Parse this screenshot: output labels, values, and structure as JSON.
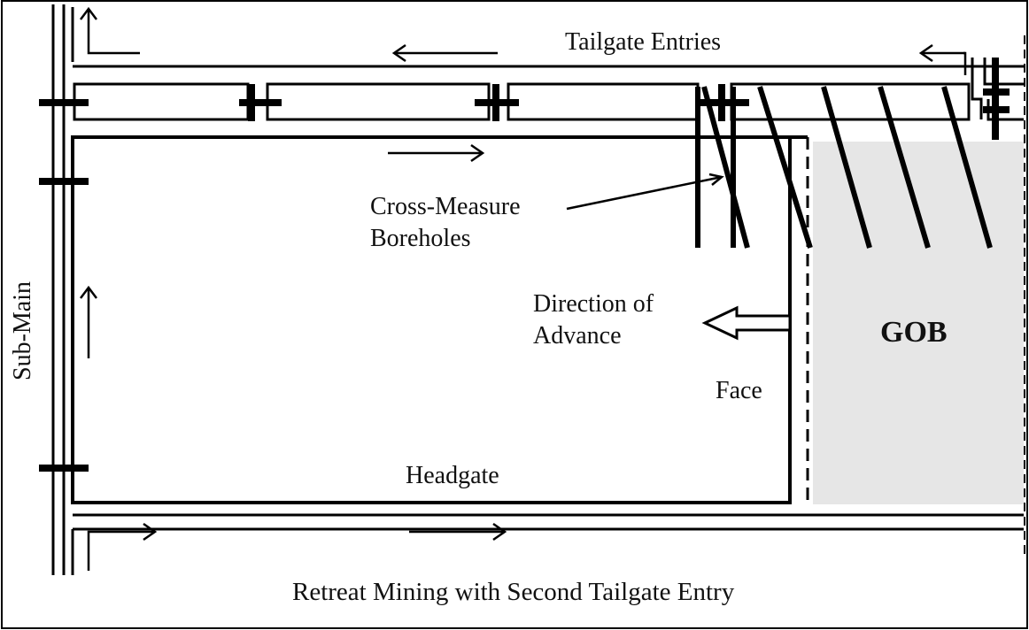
{
  "labels": {
    "tailgate": "Tailgate Entries",
    "cross_measure_1": "Cross-Measure",
    "cross_measure_2": "Boreholes",
    "direction_1": "Direction of",
    "direction_2": "Advance",
    "face": "Face",
    "gob": "GOB",
    "headgate": "Headgate",
    "sub_main": "Sub-Main",
    "caption": "Retreat Mining with Second Tailgate Entry"
  },
  "colors": {
    "line": "#000000",
    "gob_fill": "#e6e6e6",
    "background": "#ffffff"
  }
}
